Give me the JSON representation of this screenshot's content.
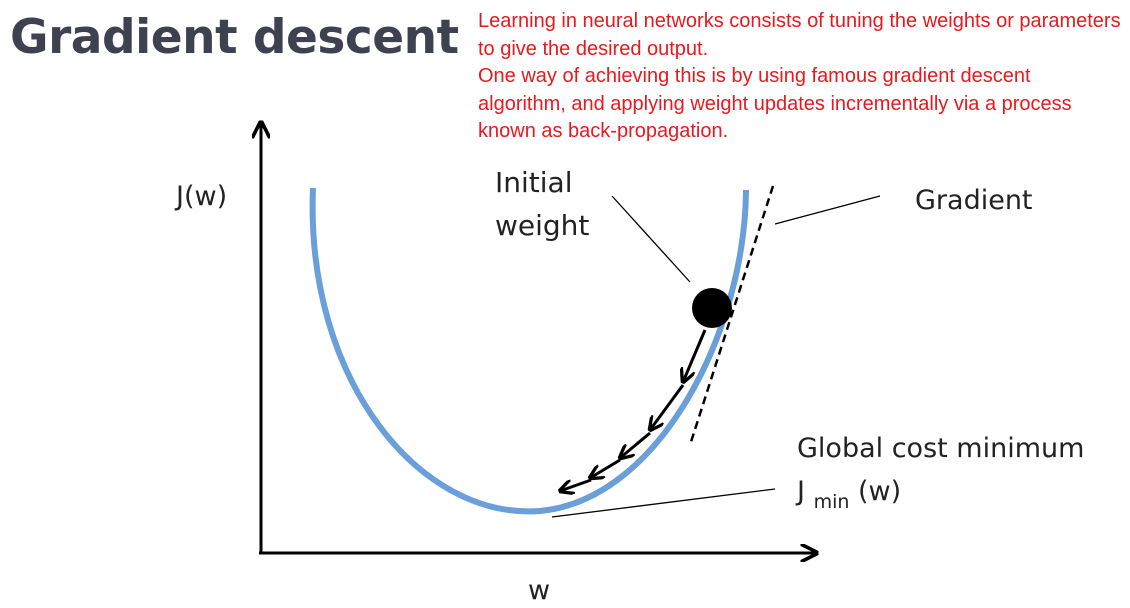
{
  "title": "Gradient descent",
  "description": {
    "paragraph_1": "Learning in neural networks consists of tuning the weights or parameters to give the desired output.",
    "paragraph_2": "One way of achieving this is by using famous gradient descent algorithm, and applying weight updates incrementally via a process known as back-propagation."
  },
  "diagram": {
    "y_axis_label": "J(w)",
    "x_axis_label": "w",
    "initial_weight_label_line1": "Initial",
    "initial_weight_label_line2": "weight",
    "gradient_label": "Gradient",
    "global_min_label": "Global cost minimum",
    "jmin_base": "J",
    "jmin_subscript": "min",
    "jmin_suffix": "(w)",
    "colors": {
      "curve": "#6a9fd9",
      "title": "#3e4250",
      "description": "#e8191e",
      "ink": "#000000"
    }
  }
}
